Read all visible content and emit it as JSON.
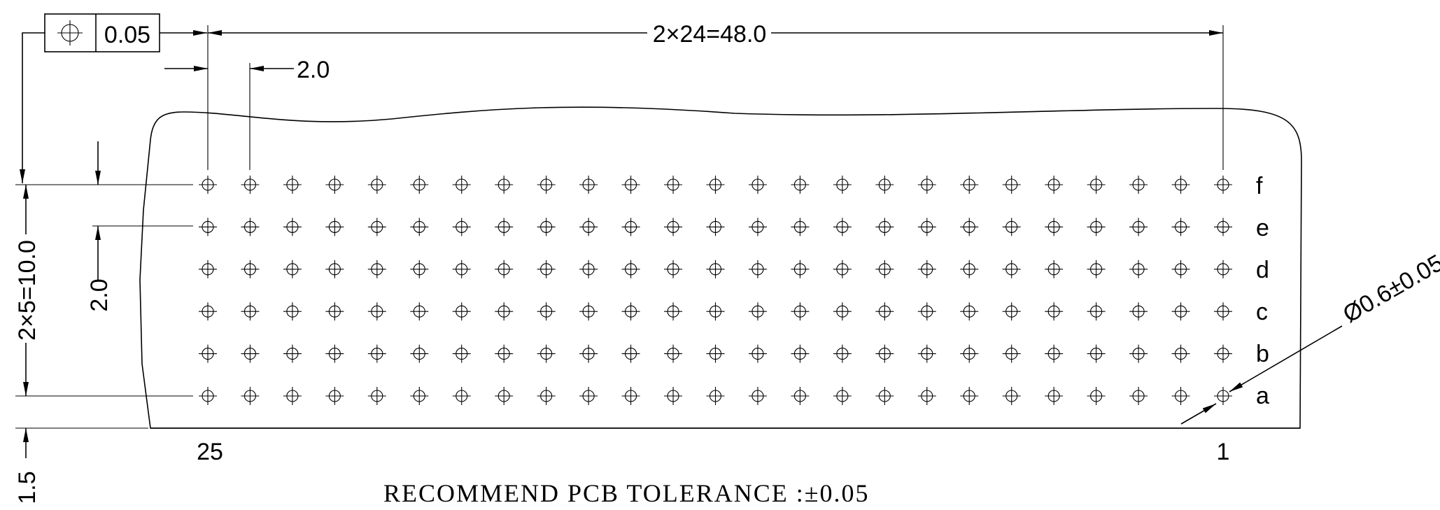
{
  "feature_control": {
    "symbol": "position-symbol",
    "tolerance": "0.05"
  },
  "dimensions": {
    "pitch_total_horizontal": "2×24=48.0",
    "pitch_horizontal": "2.0",
    "pitch_total_vertical": "2×5=10.0",
    "pitch_vertical": "2.0",
    "edge_offset": "1.5",
    "hole_diameter": "Ø0.6±0.05"
  },
  "row_labels": [
    "f",
    "e",
    "d",
    "c",
    "b",
    "a"
  ],
  "column_labels": {
    "left": "25",
    "right": "1"
  },
  "grid": {
    "rows": 6,
    "columns": 25
  },
  "note": "RECOMMEND PCB TOLERANCE :±0.05"
}
